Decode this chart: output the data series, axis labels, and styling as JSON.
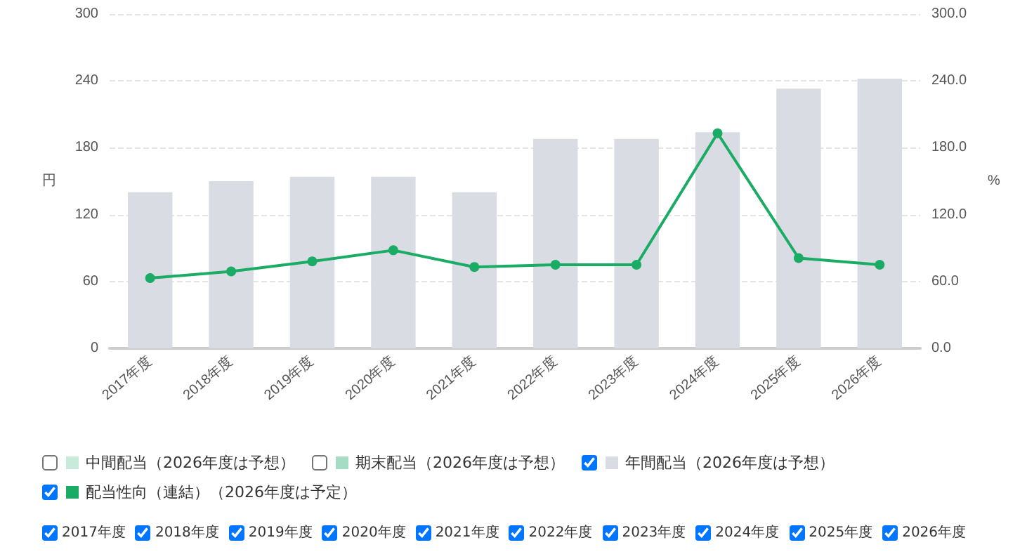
{
  "chart_data": {
    "type": "bar",
    "ylabel": "円",
    "y2label": "%",
    "categories": [
      "2017年度",
      "2018年度",
      "2019年度",
      "2020年度",
      "2021年度",
      "2022年度",
      "2023年度",
      "2024年度",
      "2025年度",
      "2026年度"
    ],
    "series": [
      {
        "name": "中間配当（2026年度は予想）",
        "color": "#c8eadb",
        "values": [
          null,
          null,
          null,
          null,
          null,
          null,
          null,
          null,
          null,
          null
        ]
      },
      {
        "name": "期末配当（2026年度は予想）",
        "color": "#a6dcc4",
        "values": [
          null,
          null,
          null,
          null,
          null,
          null,
          null,
          null,
          null,
          null
        ]
      },
      {
        "name": "年間配当（2026年度は予想）",
        "color": "#d9dde3",
        "values": [
          140,
          150,
          154,
          154,
          140,
          188,
          188,
          194,
          233,
          242
        ]
      },
      {
        "name": "配当性向（連結）（2026年度は予定）",
        "color": "#1aab64",
        "type": "line",
        "axis": "y2",
        "values": [
          63,
          69,
          78,
          88,
          73,
          75,
          75,
          193,
          81,
          75
        ]
      }
    ],
    "ylim": [
      0,
      300
    ],
    "yticks": [
      0,
      60,
      120,
      180,
      240,
      300
    ],
    "y2lim": [
      0,
      300
    ],
    "y2ticks": [
      {
        "value": 0,
        "label": "0.0"
      },
      {
        "value": 60,
        "label": "60.0"
      },
      {
        "value": 120,
        "label": "120.0"
      },
      {
        "value": 180,
        "label": "180.0"
      },
      {
        "value": 240,
        "label": "240.0"
      },
      {
        "value": 300,
        "label": "300.0"
      }
    ],
    "grid": "y",
    "legend": "bottom",
    "marker": "circle",
    "line_style": "solid"
  }
}
